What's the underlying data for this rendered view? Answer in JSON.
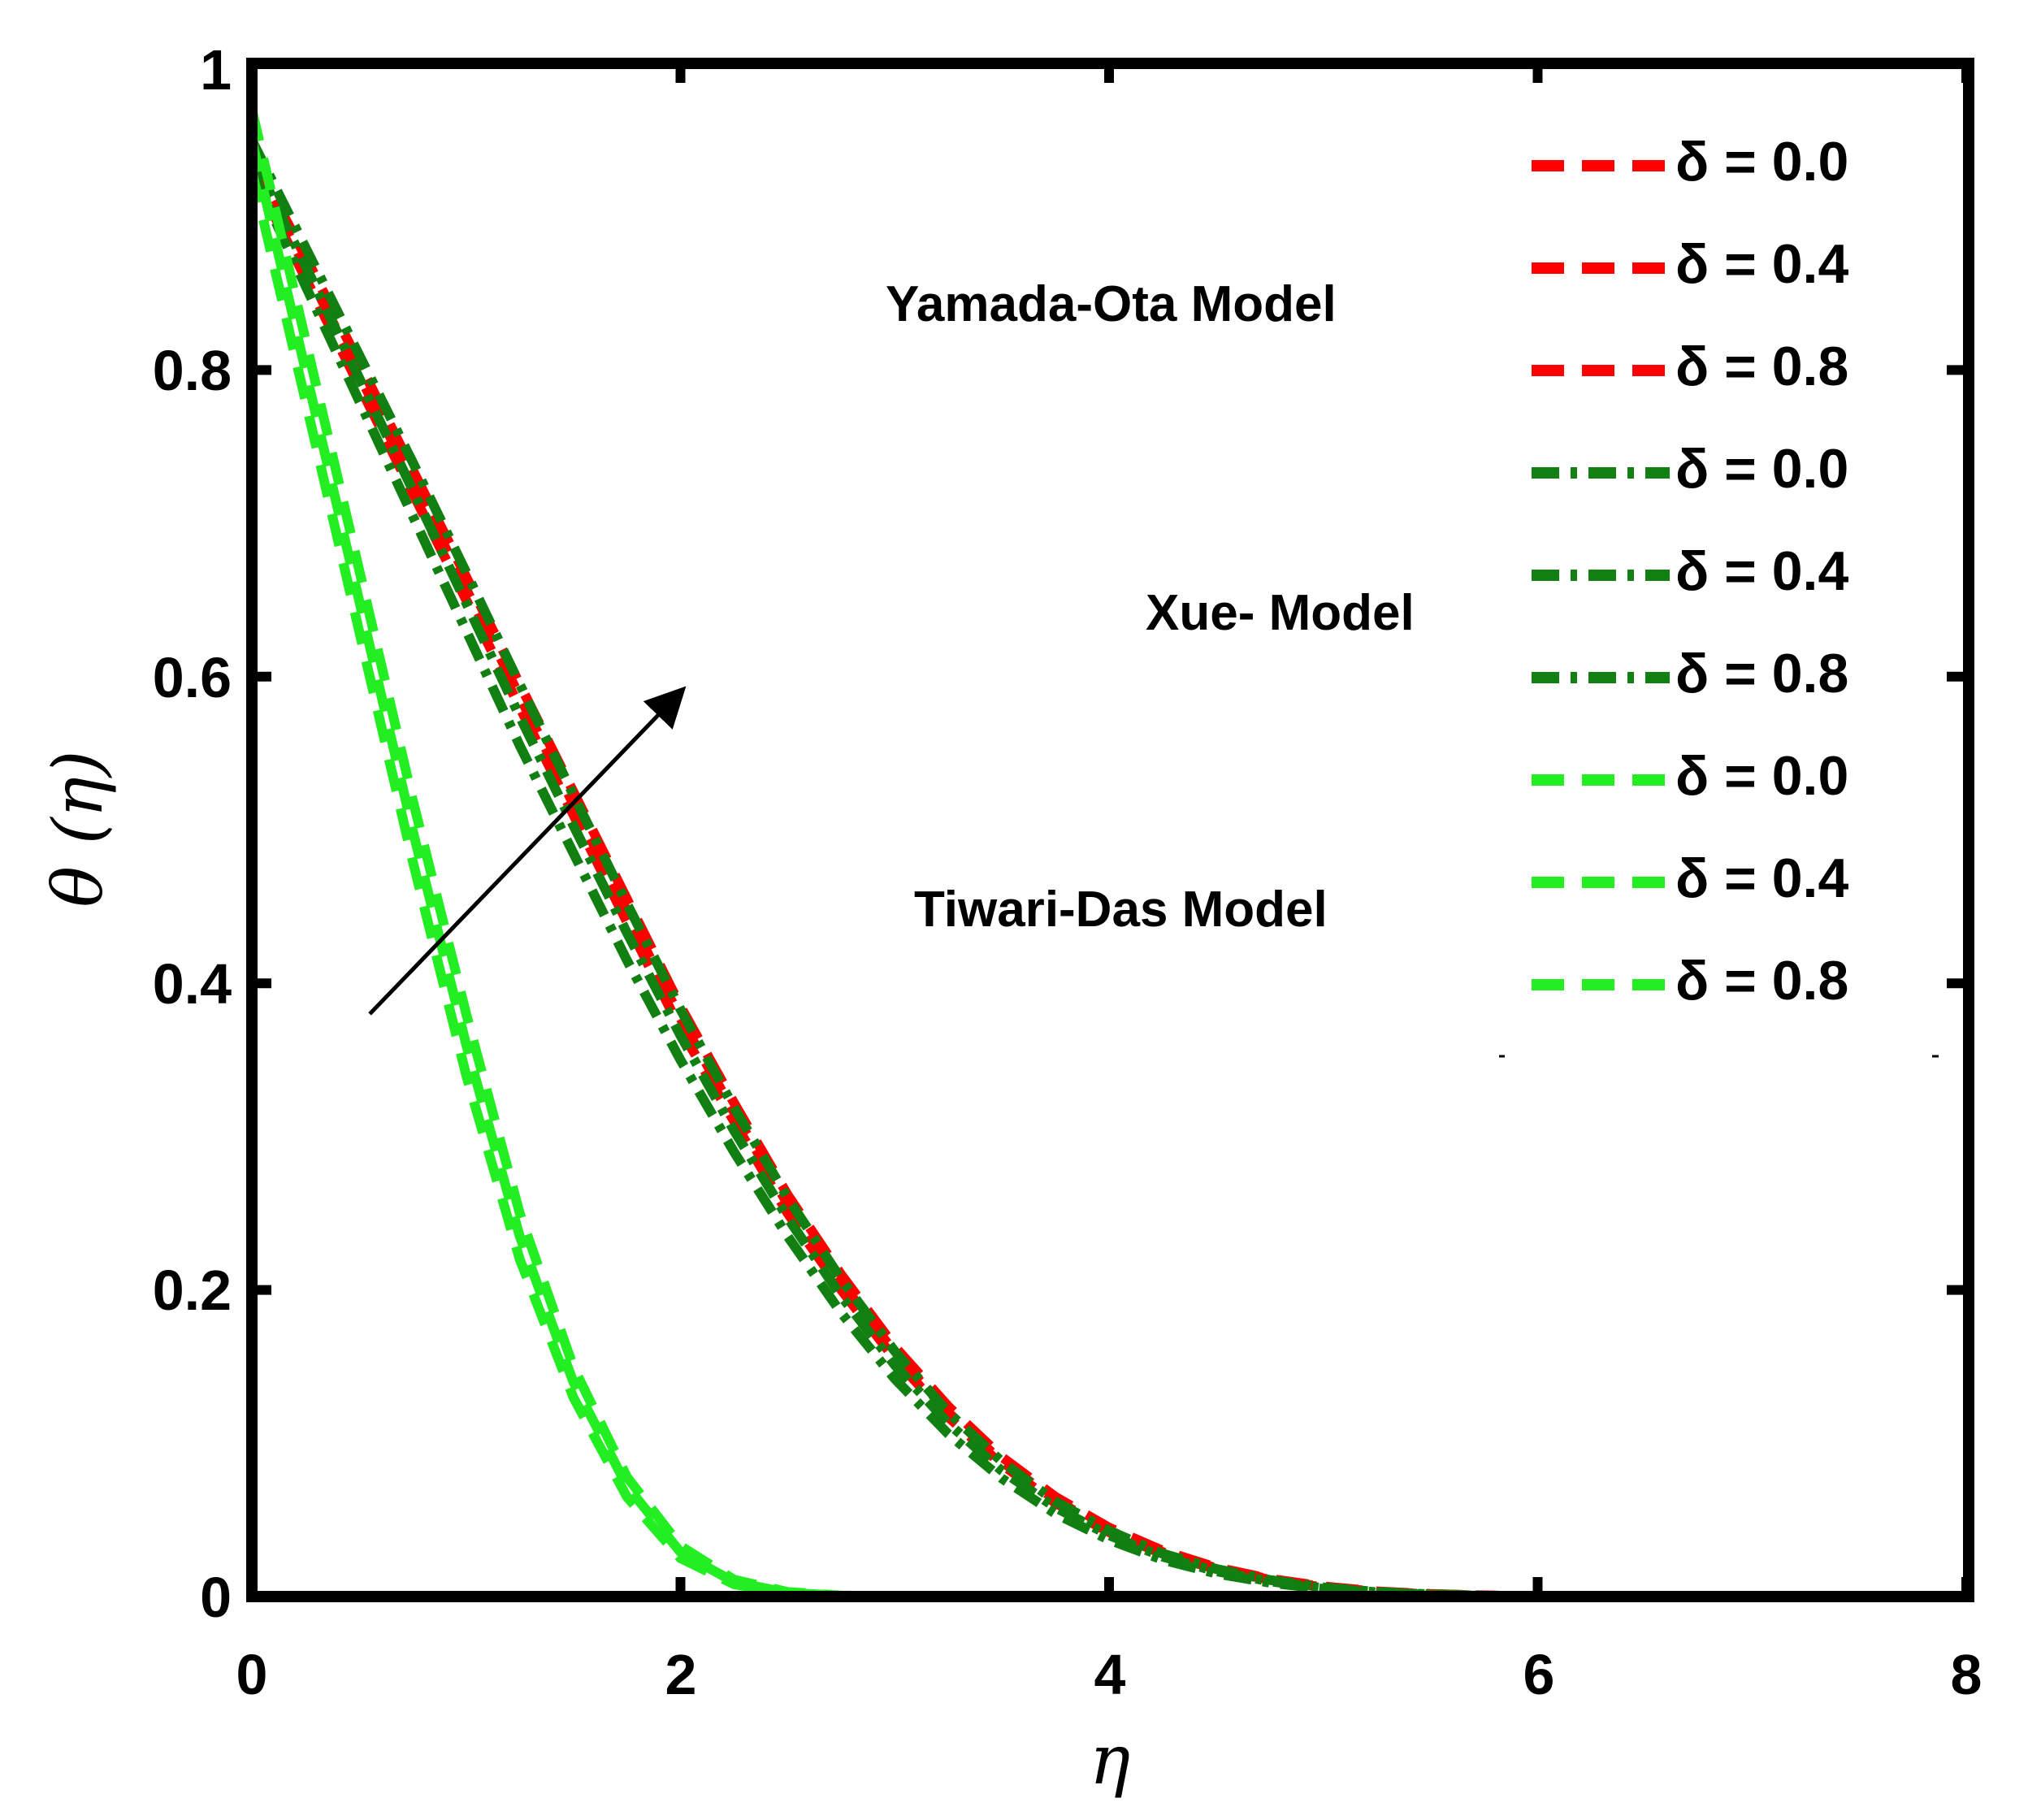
{
  "chart_data": {
    "type": "line",
    "title": "",
    "xlabel": "η",
    "ylabel": "θ (η)",
    "xlim": [
      0,
      8
    ],
    "ylim": [
      0,
      1
    ],
    "x_ticks": [
      0,
      2,
      4,
      6,
      8
    ],
    "x_tick_labels": [
      "0",
      "2",
      "4",
      "6",
      "8"
    ],
    "y_ticks": [
      0,
      0.2,
      0.4,
      0.6,
      0.8,
      1
    ],
    "y_tick_labels": [
      "0",
      "0.2",
      "0.4",
      "0.6",
      "0.8",
      "1"
    ],
    "grid": false,
    "legend_position": "top-right",
    "x": [
      0,
      0.25,
      0.5,
      0.75,
      1,
      1.25,
      1.5,
      1.75,
      2,
      2.25,
      2.5,
      2.75,
      3,
      3.25,
      3.5,
      3.75,
      4,
      4.25,
      4.5,
      4.75,
      5,
      5.25,
      5.5,
      5.75,
      6
    ],
    "series": [
      {
        "name": "δ = 0.0",
        "group": "Yamada-Ota Model",
        "color": "#ff0000",
        "dash": "dashed",
        "values": [
          0.93,
          0.86,
          0.79,
          0.72,
          0.65,
          0.58,
          0.51,
          0.44,
          0.37,
          0.31,
          0.25,
          0.2,
          0.155,
          0.117,
          0.086,
          0.061,
          0.042,
          0.028,
          0.018,
          0.011,
          0.006,
          0.003,
          0.0015,
          0.0007,
          0.0
        ]
      },
      {
        "name": "δ = 0.4",
        "group": "Yamada-Ota Model",
        "color": "#ff0000",
        "dash": "dashed",
        "values": [
          0.935,
          0.867,
          0.797,
          0.727,
          0.657,
          0.587,
          0.517,
          0.447,
          0.377,
          0.316,
          0.256,
          0.205,
          0.159,
          0.12,
          0.088,
          0.063,
          0.043,
          0.029,
          0.0185,
          0.0113,
          0.0063,
          0.0032,
          0.0016,
          0.0008,
          0.0
        ]
      },
      {
        "name": "δ = 0.8",
        "group": "Yamada-Ota Model",
        "color": "#ff0000",
        "dash": "dashed",
        "values": [
          0.94,
          0.874,
          0.805,
          0.735,
          0.665,
          0.595,
          0.525,
          0.455,
          0.385,
          0.322,
          0.262,
          0.21,
          0.163,
          0.124,
          0.091,
          0.065,
          0.045,
          0.03,
          0.019,
          0.0116,
          0.0066,
          0.0034,
          0.0017,
          0.0008,
          0.0
        ]
      },
      {
        "name": "δ = 0.0",
        "group": "Xue- Model",
        "color": "#117f11",
        "dash": "dashdot",
        "values": [
          0.93,
          0.855,
          0.78,
          0.705,
          0.63,
          0.555,
          0.485,
          0.415,
          0.35,
          0.29,
          0.235,
          0.185,
          0.142,
          0.106,
          0.077,
          0.054,
          0.037,
          0.024,
          0.015,
          0.009,
          0.005,
          0.0025,
          0.0012,
          0.0005,
          0.0
        ]
      },
      {
        "name": "δ = 0.4",
        "group": "Xue- Model",
        "color": "#117f11",
        "dash": "dashdot",
        "values": [
          0.94,
          0.868,
          0.795,
          0.722,
          0.648,
          0.574,
          0.503,
          0.433,
          0.366,
          0.304,
          0.247,
          0.196,
          0.151,
          0.113,
          0.082,
          0.058,
          0.04,
          0.026,
          0.0165,
          0.0099,
          0.0055,
          0.0028,
          0.0013,
          0.0006,
          0.0
        ]
      },
      {
        "name": "δ = 0.8",
        "group": "Xue- Model",
        "color": "#117f11",
        "dash": "dashdot",
        "values": [
          0.95,
          0.88,
          0.81,
          0.74,
          0.668,
          0.595,
          0.523,
          0.452,
          0.383,
          0.319,
          0.26,
          0.207,
          0.16,
          0.12,
          0.088,
          0.062,
          0.043,
          0.028,
          0.018,
          0.0108,
          0.006,
          0.003,
          0.0015,
          0.0007,
          0.0
        ]
      },
      {
        "name": "δ = 0.0",
        "group": "Tiwari-Das Model",
        "color": "#22ee22",
        "dash": "dashed",
        "values": [
          0.93,
          0.78,
          0.63,
          0.48,
          0.34,
          0.22,
          0.13,
          0.065,
          0.025,
          0.008,
          0.002,
          0.0005,
          0.0,
          0.0,
          0.0,
          0.0,
          0.0,
          0.0,
          0.0,
          0.0,
          0.0,
          0.0,
          0.0,
          0.0,
          0.0
        ]
      },
      {
        "name": "δ = 0.4",
        "group": "Tiwari-Das Model",
        "color": "#22ee22",
        "dash": "dashed",
        "values": [
          0.95,
          0.8,
          0.65,
          0.5,
          0.36,
          0.235,
          0.14,
          0.072,
          0.029,
          0.0095,
          0.0025,
          0.0006,
          0.0,
          0.0,
          0.0,
          0.0,
          0.0,
          0.0,
          0.0,
          0.0,
          0.0,
          0.0,
          0.0,
          0.0,
          0.0
        ]
      },
      {
        "name": "δ = 0.8",
        "group": "Tiwari-Das Model",
        "color": "#22ee22",
        "dash": "dashed",
        "values": [
          0.97,
          0.82,
          0.67,
          0.52,
          0.38,
          0.25,
          0.15,
          0.078,
          0.033,
          0.011,
          0.003,
          0.0007,
          0.0,
          0.0,
          0.0,
          0.0,
          0.0,
          0.0,
          0.0,
          0.0,
          0.0,
          0.0,
          0.0,
          0.0,
          0.0
        ]
      }
    ],
    "legend_labels": [
      "δ = 0.0",
      "δ  = 0.4",
      "δ  = 0.8",
      "δ  = 0.0",
      "δ  = 0.4",
      "δ  = 0.8",
      "δ  = 0.0",
      "δ  = 0.4",
      "δ  = 0.8"
    ],
    "annotations": {
      "yamada": "Yamada-Ota Model",
      "xue": "Xue- Model",
      "tiwari": "Tiwari-Das Model",
      "arrow": {
        "from": [
          0.55,
          0.38
        ],
        "to": [
          2.0,
          0.59
        ],
        "meaning": "increasing δ"
      }
    }
  }
}
